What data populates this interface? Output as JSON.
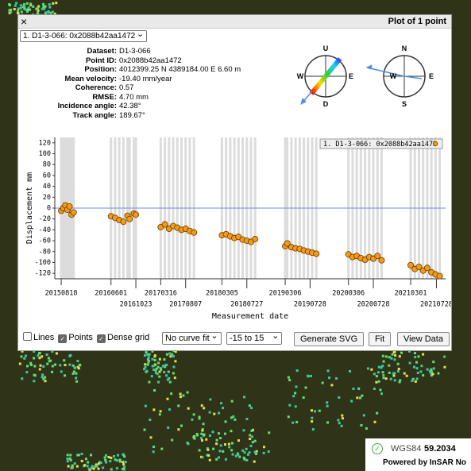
{
  "window": {
    "close": "×",
    "title": "Plot of 1 point",
    "selected_point": "1. D1-3-066: 0x2088b42aa1472"
  },
  "info": [
    {
      "label": "Dataset:",
      "value": "D1-3-066"
    },
    {
      "label": "Point ID:",
      "value": "0x2088b42aa1472"
    },
    {
      "label": "Position:",
      "value": "4012399.25 N 4389184.00 E 6.60 m"
    },
    {
      "label": "Mean velocity:",
      "value": "-19.40 mm/year"
    },
    {
      "label": "Coherence:",
      "value": "0.57"
    },
    {
      "label": "RMSE:",
      "value": "4.70 mm"
    },
    {
      "label": "Incidence angle:",
      "value": "42.38°"
    },
    {
      "label": "Track angle:",
      "value": "189.67°"
    }
  ],
  "compass_vertical": {
    "up": "U",
    "down": "D",
    "west": "W",
    "east": "E"
  },
  "compass_horizontal": {
    "north": "N",
    "south": "S",
    "west": "W",
    "east": "E"
  },
  "chart_data": {
    "type": "scatter",
    "x_label": "Measurement date",
    "y_label": "Displacement mm",
    "x": [
      "20150818",
      "20150830",
      "20150911",
      "20150923",
      "20151005",
      "20151017",
      "20151029",
      "20160601",
      "20160625",
      "20160719",
      "20160812",
      "20160905",
      "20160917",
      "20161011",
      "20161023",
      "20170316",
      "20170409",
      "20170503",
      "20170527",
      "20170620",
      "20170714",
      "20170807",
      "20170831",
      "20170924",
      "20180305",
      "20180329",
      "20180422",
      "20180516",
      "20180609",
      "20180703",
      "20180727",
      "20180820",
      "20180913",
      "20190306",
      "20190318",
      "20190411",
      "20190505",
      "20190529",
      "20190622",
      "20190716",
      "20190809",
      "20190902",
      "20200306",
      "20200330",
      "20200423",
      "20200517",
      "20200610",
      "20200704",
      "20200728",
      "20200821",
      "20200914",
      "20210301",
      "20210325",
      "20210418",
      "20210512",
      "20210605",
      "20210629",
      "20210723",
      "20210816"
    ],
    "series": [
      {
        "name": "1. D1-3-066: 0x2088b42aa1472",
        "color": "#f39a16",
        "values": [
          -5,
          0,
          5,
          -3,
          3,
          -12,
          -8,
          -15,
          -18,
          -22,
          -25,
          -14,
          -20,
          -10,
          -12,
          -35,
          -30,
          -38,
          -33,
          -36,
          -40,
          -38,
          -42,
          -45,
          -50,
          -48,
          -52,
          -55,
          -53,
          -58,
          -60,
          -62,
          -57,
          -70,
          -65,
          -72,
          -74,
          -75,
          -78,
          -80,
          -82,
          -84,
          -85,
          -90,
          -88,
          -92,
          -95,
          -90,
          -93,
          -88,
          -96,
          -105,
          -112,
          -108,
          -115,
          -110,
          -118,
          -122,
          -125
        ]
      }
    ],
    "xlim": [
      "20150712",
      "20210919"
    ],
    "xticks": [
      "20150818",
      "20160601",
      "20161023",
      "20170316",
      "20170807",
      "20180305",
      "20180727",
      "20190306",
      "20190728",
      "20200306",
      "20200728",
      "20210301",
      "20210728"
    ],
    "ylim": [
      -130,
      130
    ],
    "yticks": [
      -120,
      -100,
      -80,
      -60,
      -40,
      -20,
      0,
      20,
      40,
      60,
      80,
      100,
      120
    ],
    "dense_grid": true,
    "legend": "upper right"
  },
  "controls": {
    "lines": {
      "label": "Lines",
      "checked": false
    },
    "points": {
      "label": "Points",
      "checked": true
    },
    "dense_grid": {
      "label": "Dense grid",
      "checked": true
    },
    "curve_fit": "No curve fit",
    "range": "-15 to 15",
    "generate_svg": "Generate SVG",
    "fit": "Fit",
    "view_data": "View Data"
  },
  "map": {
    "crs": "WGS84",
    "coordinate": "59.2034",
    "powered_by": "Powered by InSAR No"
  }
}
